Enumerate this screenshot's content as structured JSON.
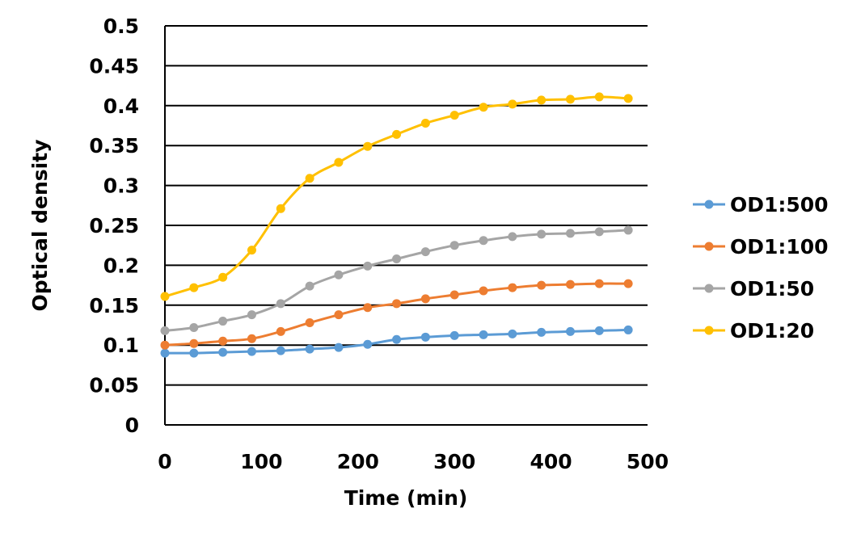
{
  "chart_data": {
    "type": "line",
    "title": "",
    "xlabel": "Time (min)",
    "ylabel": "Optical density",
    "xlim": [
      0,
      500
    ],
    "ylim": [
      0,
      0.5
    ],
    "xticks": [
      "0",
      "100",
      "200",
      "300",
      "400",
      "500"
    ],
    "yticks": [
      "0",
      "0.05",
      "0.1",
      "0.15",
      "0.2",
      "0.25",
      "0.3",
      "0.35",
      "0.4",
      "0.45",
      "0.5"
    ],
    "grid": "horizontal",
    "legend_position": "right",
    "smooth": true,
    "x": [
      0,
      30,
      60,
      90,
      120,
      150,
      180,
      210,
      240,
      270,
      300,
      330,
      360,
      390,
      420,
      450,
      480
    ],
    "series": [
      {
        "name": "OD1:500",
        "color": "#5B9BD5",
        "values": [
          0.09,
          0.09,
          0.091,
          0.092,
          0.093,
          0.095,
          0.097,
          0.101,
          0.107,
          0.11,
          0.112,
          0.113,
          0.114,
          0.116,
          0.117,
          0.118,
          0.119
        ]
      },
      {
        "name": "OD1:100",
        "color": "#ED7D31",
        "values": [
          0.1,
          0.102,
          0.105,
          0.108,
          0.117,
          0.128,
          0.138,
          0.147,
          0.152,
          0.158,
          0.163,
          0.168,
          0.172,
          0.175,
          0.176,
          0.177,
          0.177
        ]
      },
      {
        "name": "OD1:50",
        "color": "#A5A5A5",
        "values": [
          0.118,
          0.122,
          0.13,
          0.138,
          0.152,
          0.174,
          0.188,
          0.199,
          0.208,
          0.217,
          0.225,
          0.231,
          0.236,
          0.239,
          0.24,
          0.242,
          0.244
        ]
      },
      {
        "name": "OD1:20",
        "color": "#FFC000",
        "values": [
          0.161,
          0.172,
          0.185,
          0.219,
          0.271,
          0.309,
          0.329,
          0.349,
          0.364,
          0.378,
          0.388,
          0.398,
          0.402,
          0.407,
          0.408,
          0.411,
          0.409
        ]
      }
    ]
  }
}
